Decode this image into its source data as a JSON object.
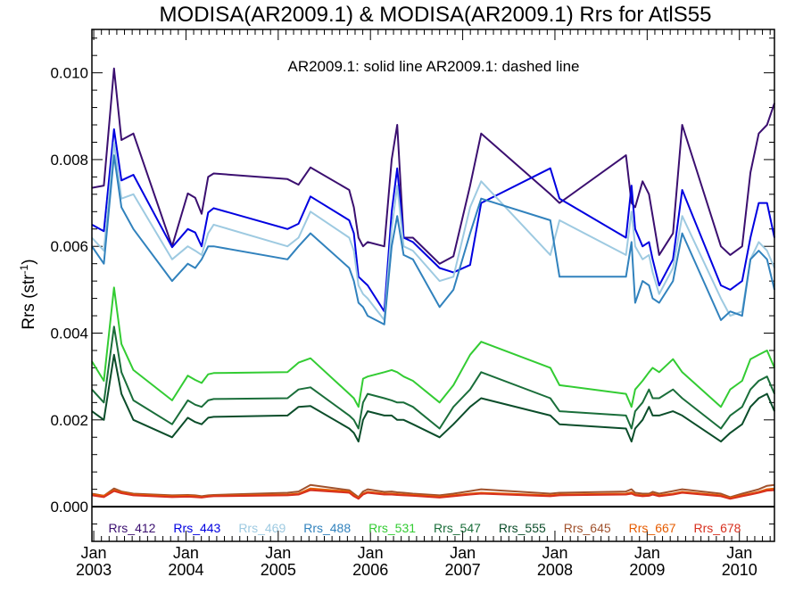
{
  "chart_data": {
    "type": "line",
    "title": "MODISA(AR2009.1) & MODISA(AR2009.1)  Rrs for AtlS55",
    "ylabel": "Rrs (str",
    "ylabel_sup": "-1",
    "ylabel_close": ")",
    "annotation": "AR2009.1: solid line   AR2009.1: dashed line",
    "ylim": [
      -0.0008,
      0.011
    ],
    "xlim": [
      2002.98,
      2010.38
    ],
    "yticks": [
      {
        "v": 0.0,
        "label": "0.000"
      },
      {
        "v": 0.002,
        "label": "0.002"
      },
      {
        "v": 0.004,
        "label": "0.004"
      },
      {
        "v": 0.006,
        "label": "0.006"
      },
      {
        "v": 0.008,
        "label": "0.008"
      },
      {
        "v": 0.01,
        "label": "0.010"
      }
    ],
    "xticks": [
      {
        "v": 2003.0,
        "month": "Jan",
        "year": "2003"
      },
      {
        "v": 2004.0,
        "month": "Jan",
        "year": "2004"
      },
      {
        "v": 2005.0,
        "month": "Jan",
        "year": "2005"
      },
      {
        "v": 2006.0,
        "month": "Jan",
        "year": "2006"
      },
      {
        "v": 2007.0,
        "month": "Jan",
        "year": "2007"
      },
      {
        "v": 2008.0,
        "month": "Jan",
        "year": "2008"
      },
      {
        "v": 2009.0,
        "month": "Jan",
        "year": "2009"
      },
      {
        "v": 2010.0,
        "month": "Jan",
        "year": "2010"
      }
    ],
    "x": [
      2002.98,
      2003.11,
      2003.22,
      2003.3,
      2003.43,
      2003.85,
      2004.02,
      2004.1,
      2004.17,
      2004.24,
      2004.3,
      2005.1,
      2005.22,
      2005.35,
      2005.77,
      2005.82,
      2005.87,
      2005.92,
      2005.97,
      2006.15,
      2006.23,
      2006.29,
      2006.36,
      2006.46,
      2006.75,
      2006.9,
      2007.08,
      2007.2,
      2007.95,
      2008.05,
      2008.77,
      2008.83,
      2008.87,
      2008.95,
      2009.02,
      2009.06,
      2009.13,
      2009.28,
      2009.38,
      2009.8,
      2009.9,
      2010.03,
      2010.12,
      2010.21,
      2010.3,
      2010.38
    ],
    "series": [
      {
        "name": "Rrs_412",
        "color": "#3b0f70",
        "values": [
          0.00735,
          0.0074,
          0.0101,
          0.00845,
          0.0086,
          0.006,
          0.00722,
          0.00712,
          0.00675,
          0.0076,
          0.00768,
          0.00755,
          0.00742,
          0.00782,
          0.0073,
          0.0069,
          0.0062,
          0.006,
          0.0061,
          0.006,
          0.008,
          0.0088,
          0.0062,
          0.0062,
          0.0056,
          0.00577,
          0.0074,
          0.0086,
          0.0072,
          0.007,
          0.0081,
          0.007,
          0.0069,
          0.0075,
          0.0072,
          0.0067,
          0.0058,
          0.0063,
          0.0088,
          0.006,
          0.0058,
          0.006,
          0.0077,
          0.0086,
          0.0088,
          0.0093
        ]
      },
      {
        "name": "Rrs_443",
        "color": "#0000e0",
        "values": [
          0.0065,
          0.00635,
          0.0087,
          0.00752,
          0.00765,
          0.00598,
          0.0064,
          0.00632,
          0.006,
          0.00678,
          0.00688,
          0.0064,
          0.00652,
          0.00715,
          0.0066,
          0.0063,
          0.0053,
          0.0052,
          0.0051,
          0.0045,
          0.0068,
          0.0078,
          0.0062,
          0.0061,
          0.0055,
          0.0054,
          0.00557,
          0.007,
          0.0078,
          0.0071,
          0.0062,
          0.0074,
          0.0064,
          0.006,
          0.0061,
          0.0057,
          0.0051,
          0.0057,
          0.0073,
          0.0051,
          0.005,
          0.0052,
          0.0062,
          0.007,
          0.007,
          0.0062
        ]
      },
      {
        "name": "Rrs_469",
        "color": "#9ecae1",
        "values": [
          0.0062,
          0.0059,
          0.0084,
          0.0071,
          0.0072,
          0.0057,
          0.006,
          0.0059,
          0.0058,
          0.0063,
          0.0065,
          0.006,
          0.0062,
          0.0068,
          0.0062,
          0.0059,
          0.0051,
          0.0049,
          0.0048,
          0.0043,
          0.0064,
          0.0074,
          0.006,
          0.0059,
          0.0052,
          0.0053,
          0.0069,
          0.0075,
          0.0058,
          0.0066,
          0.0058,
          0.0068,
          0.006,
          0.0057,
          0.0058,
          0.0054,
          0.0049,
          0.0055,
          0.0067,
          0.0048,
          0.0044,
          0.0045,
          0.0057,
          0.0061,
          0.0059,
          0.0055
        ]
      },
      {
        "name": "Rrs_488",
        "color": "#3182bd",
        "values": [
          0.006,
          0.0056,
          0.0081,
          0.0069,
          0.0064,
          0.0052,
          0.0056,
          0.0055,
          0.0057,
          0.006,
          0.006,
          0.0057,
          0.006,
          0.0063,
          0.0055,
          0.0052,
          0.0047,
          0.0046,
          0.0044,
          0.0042,
          0.006,
          0.0067,
          0.0058,
          0.0057,
          0.0046,
          0.005,
          0.0063,
          0.0071,
          0.0066,
          0.0053,
          0.0053,
          0.0061,
          0.0047,
          0.0052,
          0.0051,
          0.0048,
          0.0047,
          0.0052,
          0.0063,
          0.0043,
          0.0045,
          0.0044,
          0.0057,
          0.0059,
          0.0057,
          0.005
        ]
      },
      {
        "name": "Rrs_531",
        "color": "#33cc33",
        "values": [
          0.00335,
          0.0029,
          0.00505,
          0.00375,
          0.00315,
          0.00245,
          0.00302,
          0.00292,
          0.00285,
          0.00305,
          0.00308,
          0.0031,
          0.00332,
          0.00342,
          0.0026,
          0.0025,
          0.0023,
          0.00295,
          0.003,
          0.0031,
          0.00315,
          0.0031,
          0.003,
          0.0029,
          0.0024,
          0.0028,
          0.0035,
          0.0038,
          0.0032,
          0.0028,
          0.0026,
          0.0023,
          0.0027,
          0.0029,
          0.0031,
          0.0032,
          0.0031,
          0.0034,
          0.0031,
          0.0023,
          0.0027,
          0.0029,
          0.0034,
          0.0035,
          0.0036,
          0.0032
        ]
      },
      {
        "name": "Rrs_547",
        "color": "#1a6e3a",
        "values": [
          0.0027,
          0.0024,
          0.00415,
          0.0031,
          0.00245,
          0.0019,
          0.00245,
          0.00235,
          0.0023,
          0.00245,
          0.00248,
          0.0025,
          0.0027,
          0.00275,
          0.0021,
          0.002,
          0.0018,
          0.0024,
          0.0026,
          0.0025,
          0.00245,
          0.0024,
          0.0024,
          0.0023,
          0.0018,
          0.0023,
          0.0027,
          0.0031,
          0.0025,
          0.0022,
          0.0021,
          0.0018,
          0.0022,
          0.0024,
          0.0027,
          0.0025,
          0.0025,
          0.0027,
          0.0025,
          0.0018,
          0.0021,
          0.0023,
          0.0027,
          0.0029,
          0.003,
          0.0026
        ]
      },
      {
        "name": "Rrs_555",
        "color": "#0b4d2a",
        "values": [
          0.0022,
          0.002,
          0.0035,
          0.0026,
          0.002,
          0.0016,
          0.00205,
          0.00195,
          0.0019,
          0.00205,
          0.00207,
          0.0021,
          0.0023,
          0.00232,
          0.0018,
          0.0017,
          0.0015,
          0.002,
          0.0022,
          0.0021,
          0.0021,
          0.002,
          0.002,
          0.0019,
          0.0016,
          0.0019,
          0.0023,
          0.0025,
          0.0021,
          0.0019,
          0.0018,
          0.0015,
          0.0018,
          0.002,
          0.0023,
          0.0021,
          0.0021,
          0.0022,
          0.0021,
          0.0015,
          0.0017,
          0.0019,
          0.0023,
          0.0025,
          0.0026,
          0.0022
        ]
      },
      {
        "name": "Rrs_645",
        "color": "#a0522d",
        "values": [
          0.0003,
          0.00025,
          0.00042,
          0.00035,
          0.0003,
          0.00026,
          0.00027,
          0.00026,
          0.00024,
          0.00026,
          0.00027,
          0.00032,
          0.00035,
          0.0005,
          0.00038,
          0.0003,
          0.00022,
          0.00035,
          0.0004,
          0.00034,
          0.00035,
          0.00033,
          0.00032,
          0.0003,
          0.00026,
          0.0003,
          0.00036,
          0.0004,
          0.0003,
          0.00032,
          0.00035,
          0.0004,
          0.00032,
          0.0003,
          0.0003,
          0.00034,
          0.0003,
          0.00036,
          0.0004,
          0.0003,
          0.00022,
          0.0003,
          0.00035,
          0.0004,
          0.00048,
          0.0005
        ]
      },
      {
        "name": "Rrs_667",
        "color": "#e65c00",
        "values": [
          0.00028,
          0.00025,
          0.00038,
          0.00033,
          0.00028,
          0.00024,
          0.00025,
          0.00024,
          0.00022,
          0.00024,
          0.00025,
          0.00028,
          0.0003,
          0.00042,
          0.00035,
          0.00026,
          0.0002,
          0.0003,
          0.00034,
          0.0003,
          0.0003,
          0.00029,
          0.00028,
          0.00027,
          0.00023,
          0.00026,
          0.0003,
          0.00032,
          0.00026,
          0.00028,
          0.0003,
          0.00033,
          0.00028,
          0.00026,
          0.00027,
          0.0003,
          0.00026,
          0.0003,
          0.00034,
          0.00026,
          0.0002,
          0.00026,
          0.0003,
          0.00034,
          0.0004,
          0.00042
        ]
      },
      {
        "name": "Rrs_678",
        "color": "#d7301f",
        "values": [
          0.00026,
          0.00022,
          0.00036,
          0.00031,
          0.00026,
          0.00022,
          0.00023,
          0.00022,
          0.00021,
          0.00023,
          0.00024,
          0.00026,
          0.00028,
          0.00038,
          0.00032,
          0.00024,
          0.00018,
          0.00028,
          0.00032,
          0.00028,
          0.00028,
          0.00027,
          0.00026,
          0.00025,
          0.00021,
          0.00024,
          0.00028,
          0.0003,
          0.00024,
          0.00026,
          0.00028,
          0.0003,
          0.00026,
          0.00024,
          0.00025,
          0.00028,
          0.00024,
          0.00028,
          0.00032,
          0.00024,
          0.00018,
          0.00024,
          0.00028,
          0.00032,
          0.00037,
          0.00038
        ]
      }
    ]
  }
}
